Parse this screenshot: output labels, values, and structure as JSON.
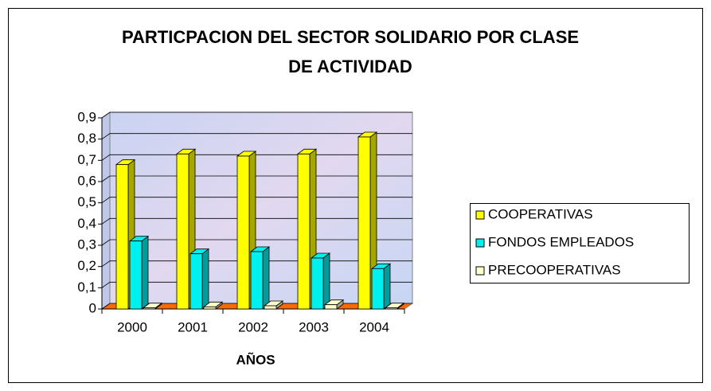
{
  "chart_data": {
    "type": "bar3d",
    "title": "PARTICPACION DEL SECTOR SOLIDARIO POR CLASE DE ACTIVIDAD",
    "x_label": "AÑOS",
    "categories": [
      "2000",
      "2001",
      "2002",
      "2003",
      "2004"
    ],
    "series": [
      {
        "name": "COOPERATIVAS",
        "color": "#ffff00",
        "values": [
          0.68,
          0.73,
          0.72,
          0.73,
          0.81
        ]
      },
      {
        "name": "FONDOS EMPLEADOS",
        "color": "#00f0f0",
        "values": [
          0.32,
          0.26,
          0.27,
          0.24,
          0.19
        ]
      },
      {
        "name": "PRECOOPERATIVAS",
        "color": "#ffffcc",
        "values": [
          0.005,
          0.01,
          0.015,
          0.02,
          0.005
        ]
      }
    ],
    "ylim": [
      0,
      0.9
    ],
    "yticks": [
      0,
      {
        "value": 0.1,
        "label": "0,1"
      },
      {
        "value": 0.2,
        "label": "0,2"
      },
      {
        "value": 0.3,
        "label": "0,3"
      },
      {
        "value": 0.4,
        "label": "0,4"
      },
      {
        "value": 0.5,
        "label": "0,5"
      },
      {
        "value": 0.6,
        "label": "0,6"
      },
      {
        "value": 0.7,
        "label": "0,7"
      },
      {
        "value": 0.8,
        "label": "0,8"
      },
      {
        "value": 0.9,
        "label": "0,9"
      }
    ],
    "grid": true,
    "legend": "right"
  }
}
